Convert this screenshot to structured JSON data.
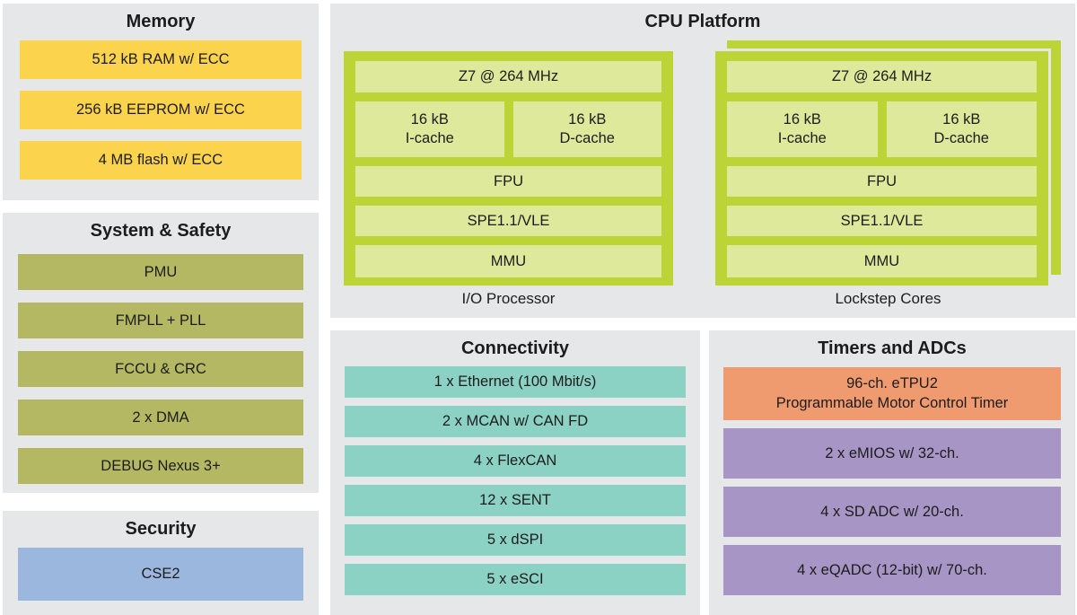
{
  "palette": {
    "panel_background": "#e6e7e8",
    "memory_yellow": "#fbd34d",
    "system_olive": "#b5b862",
    "security_blue": "#9bb7de",
    "core_green": "#bcd435",
    "core_fill_light_green": "#dee99b",
    "connectivity_teal": "#8bd1c4",
    "etpu_orange": "#f09a70",
    "adc_purple": "#a795c5",
    "text": "#1c1c1c"
  },
  "memory": {
    "title": "Memory",
    "items": [
      "512 kB RAM w/ ECC",
      "256 kB EEPROM w/ ECC",
      "4 MB flash w/ ECC"
    ]
  },
  "system_safety": {
    "title": "System & Safety",
    "items": [
      "PMU",
      "FMPLL + PLL",
      "FCCU & CRC",
      "2 x DMA",
      "DEBUG Nexus 3+"
    ]
  },
  "security": {
    "title": "Security",
    "items": [
      "CSE2"
    ]
  },
  "cpu_platform": {
    "title": "CPU Platform",
    "core": {
      "clock": "Z7 @ 264 MHz",
      "icache_size": "16 kB",
      "icache_label": "I-cache",
      "dcache_size": "16 kB",
      "dcache_label": "D-cache",
      "fpu": "FPU",
      "spe": "SPE1.1/VLE",
      "mmu": "MMU"
    },
    "io_caption": "I/O Processor",
    "lockstep_caption": "Lockstep Cores"
  },
  "connectivity": {
    "title": "Connectivity",
    "items": [
      "1 x Ethernet (100 Mbit/s)",
      "2 x MCAN w/ CAN FD",
      "4 x FlexCAN",
      "12 x SENT",
      "5 x dSPI",
      "5 x eSCI"
    ]
  },
  "timers_adcs": {
    "title": "Timers and ADCs",
    "etpu_line1": "96-ch. eTPU2",
    "etpu_line2": "Programmable Motor Control Timer",
    "items": [
      "2 x eMIOS w/ 32-ch.",
      "4 x SD ADC w/ 20-ch.",
      "4 x eQADC (12-bit) w/ 70-ch."
    ]
  }
}
